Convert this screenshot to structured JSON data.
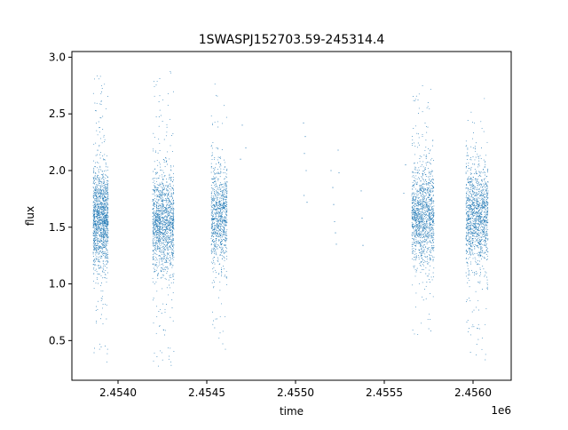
{
  "chart_data": {
    "type": "scatter",
    "title": "1SWASPJ152703.59-245314.4",
    "xlabel": "time",
    "ylabel": "flux",
    "x_offset_label": "1e6",
    "xlim": [
      2453740,
      2456215
    ],
    "ylim": [
      0.15,
      3.05
    ],
    "x_ticks": [
      2454000,
      2454500,
      2455000,
      2455500,
      2456000
    ],
    "x_tick_labels": [
      "2.4540",
      "2.4545",
      "2.4550",
      "2.4555",
      "2.4560"
    ],
    "y_ticks": [
      0.5,
      1.0,
      1.5,
      2.0,
      2.5,
      3.0
    ],
    "y_tick_labels": [
      "0.5",
      "1.0",
      "1.5",
      "2.0",
      "2.5",
      "3.0"
    ],
    "grid": false,
    "marker_color": "#1f77b4",
    "clusters": [
      {
        "x_start": 2453860,
        "x_end": 2453945,
        "y_median": 1.58,
        "y_low": 0.3,
        "y_high": 2.92,
        "n_points": 1400
      },
      {
        "x_start": 2454195,
        "x_end": 2454315,
        "y_median": 1.55,
        "y_low": 0.27,
        "y_high": 2.9,
        "n_points": 1400
      },
      {
        "x_start": 2454525,
        "x_end": 2454615,
        "y_median": 1.6,
        "y_low": 0.36,
        "y_high": 2.92,
        "n_points": 900
      },
      {
        "x_start": 2455655,
        "x_end": 2455780,
        "y_median": 1.6,
        "y_low": 0.55,
        "y_high": 2.75,
        "n_points": 1300
      },
      {
        "x_start": 2455960,
        "x_end": 2456085,
        "y_median": 1.6,
        "y_low": 0.32,
        "y_high": 2.66,
        "n_points": 1300
      }
    ],
    "sparse_points": [
      [
        2454700,
        2.4
      ],
      [
        2454720,
        2.2
      ],
      [
        2454690,
        2.1
      ],
      [
        2455045,
        2.42
      ],
      [
        2455055,
        2.3
      ],
      [
        2455050,
        2.15
      ],
      [
        2455060,
        2.0
      ],
      [
        2455048,
        1.78
      ],
      [
        2455065,
        1.72
      ],
      [
        2455200,
        2.0
      ],
      [
        2455210,
        1.85
      ],
      [
        2455215,
        1.7
      ],
      [
        2455220,
        1.55
      ],
      [
        2455225,
        1.45
      ],
      [
        2455230,
        1.35
      ],
      [
        2455240,
        2.18
      ],
      [
        2455245,
        1.98
      ],
      [
        2455370,
        1.82
      ],
      [
        2455375,
        1.58
      ],
      [
        2455380,
        1.34
      ],
      [
        2455620,
        2.05
      ],
      [
        2455610,
        1.8
      ]
    ]
  }
}
